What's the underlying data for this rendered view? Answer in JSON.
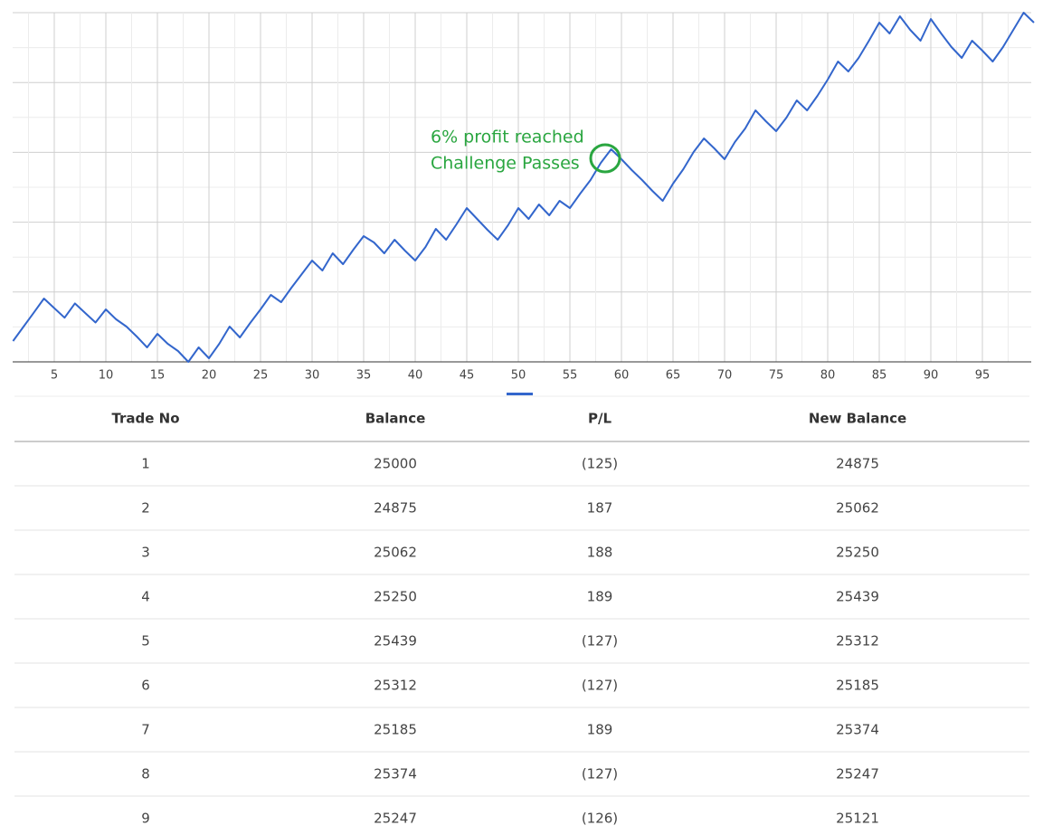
{
  "chart_data": {
    "type": "line",
    "x": [
      1,
      2,
      3,
      4,
      5,
      6,
      7,
      8,
      9,
      10,
      11,
      12,
      13,
      14,
      15,
      16,
      17,
      18,
      19,
      20,
      21,
      22,
      23,
      24,
      25,
      26,
      27,
      28,
      29,
      30,
      31,
      32,
      33,
      34,
      35,
      36,
      37,
      38,
      39,
      40,
      41,
      42,
      43,
      44,
      45,
      46,
      47,
      48,
      49,
      50,
      51,
      52,
      53,
      54,
      55,
      56,
      57,
      58,
      59,
      60,
      61,
      62,
      63,
      64,
      65,
      66,
      67,
      68,
      69,
      70,
      71,
      72,
      73,
      74,
      75,
      76,
      77,
      78,
      79,
      80,
      81,
      82,
      83,
      84,
      85,
      86,
      87,
      88,
      89,
      90,
      91,
      92,
      93,
      94,
      95,
      96,
      97,
      98,
      99,
      100
    ],
    "series": [
      {
        "color": "#3366cc",
        "values": [
          24875,
          25062,
          25250,
          25439,
          25312,
          25185,
          25374,
          25247,
          25121,
          25295,
          25163,
          25067,
          24935,
          24791,
          24971,
          24839,
          24743,
          24599,
          24791,
          24647,
          24839,
          25067,
          24923,
          25115,
          25295,
          25487,
          25391,
          25583,
          25763,
          25943,
          25811,
          26039,
          25895,
          26087,
          26267,
          26183,
          26039,
          26219,
          26075,
          25943,
          26123,
          26363,
          26219,
          26423,
          26639,
          26495,
          26351,
          26219,
          26411,
          26639,
          26495,
          26687,
          26543,
          26735,
          26639,
          26831,
          27011,
          27239,
          27419,
          27287,
          27143,
          27011,
          26867,
          26735,
          26963,
          27155,
          27383,
          27563,
          27431,
          27287,
          27515,
          27695,
          27935,
          27791,
          27659,
          27839,
          28067,
          27935,
          28127,
          28343,
          28583,
          28451,
          28631,
          28859,
          29099,
          28955,
          29183,
          29003,
          28859,
          29147,
          28955,
          28775,
          28631,
          28859,
          28727,
          28583,
          28775,
          29003,
          29231,
          29099
        ]
      }
    ],
    "xlim": [
      1,
      100
    ],
    "xticks": [
      5,
      10,
      15,
      20,
      25,
      30,
      35,
      40,
      45,
      50,
      55,
      60,
      65,
      70,
      75,
      80,
      85,
      90,
      95
    ],
    "ylim": [
      24599,
      29231
    ],
    "annotations": [
      "6% profit reached",
      "Challenge Passes"
    ]
  },
  "table": {
    "header": [
      "Trade No",
      "Balance",
      "P/L",
      "New Balance"
    ],
    "rows": [
      [
        "1",
        "25000",
        "(125)",
        "24875"
      ],
      [
        "2",
        "24875",
        "187",
        "25062"
      ],
      [
        "3",
        "25062",
        "188",
        "25250"
      ],
      [
        "4",
        "25250",
        "189",
        "25439"
      ],
      [
        "5",
        "25439",
        "(127)",
        "25312"
      ],
      [
        "6",
        "25312",
        "(127)",
        "25185"
      ],
      [
        "7",
        "25185",
        "189",
        "25374"
      ],
      [
        "8",
        "25374",
        "(127)",
        "25247"
      ],
      [
        "9",
        "25247",
        "(126)",
        "25121"
      ]
    ]
  }
}
